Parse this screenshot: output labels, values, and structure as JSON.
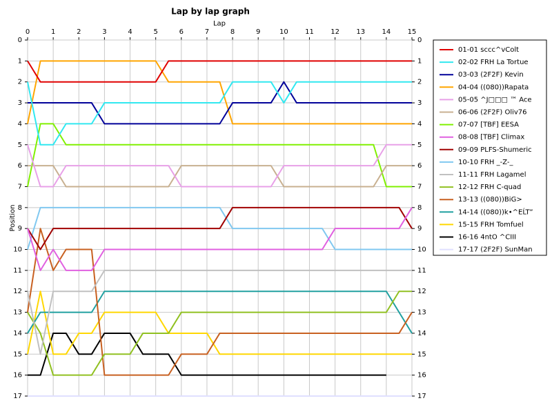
{
  "chart_data": {
    "type": "line",
    "title": "Lap by lap graph",
    "x_label": "Lap",
    "y_label": "Position",
    "x": [
      0,
      0.5,
      1,
      1.5,
      2,
      2.5,
      3,
      3.5,
      4,
      4.5,
      5,
      5.5,
      6,
      6.5,
      7,
      7.5,
      8,
      8.5,
      9,
      9.5,
      10,
      10.5,
      11,
      11.5,
      12,
      12.5,
      13,
      13.5,
      14,
      14.5,
      15
    ],
    "xlim": [
      0,
      15
    ],
    "xticks": [
      0,
      1,
      2,
      3,
      4,
      5,
      6,
      7,
      8,
      9,
      10,
      11,
      12,
      13,
      14,
      15
    ],
    "ylim": [
      17,
      0
    ],
    "yticks": [
      0,
      1,
      2,
      3,
      4,
      5,
      6,
      7,
      8,
      9,
      10,
      11,
      12,
      13,
      14,
      15,
      16,
      17
    ],
    "grid": true,
    "legend": "right",
    "series": [
      {
        "name": "01-01 sccc^vColt",
        "color": "#e00000",
        "values": [
          1,
          2,
          2,
          2,
          2,
          2,
          2,
          2,
          2,
          2,
          2,
          1,
          1,
          1,
          1,
          1,
          1,
          1,
          1,
          1,
          1,
          1,
          1,
          1,
          1,
          1,
          1,
          1,
          1,
          1,
          1
        ]
      },
      {
        "name": "02-02 FRH La Tortue",
        "color": "#30e8f0",
        "values": [
          2,
          5,
          5,
          4,
          4,
          4,
          3,
          3,
          3,
          3,
          3,
          3,
          3,
          3,
          3,
          3,
          2,
          2,
          2,
          2,
          3,
          2,
          2,
          2,
          2,
          2,
          2,
          2,
          2,
          2,
          2
        ]
      },
      {
        "name": "03-03 (2F2F) Kevin",
        "color": "#000099",
        "values": [
          3,
          3,
          3,
          3,
          3,
          3,
          4,
          4,
          4,
          4,
          4,
          4,
          4,
          4,
          4,
          4,
          3,
          3,
          3,
          3,
          2,
          3,
          3,
          3,
          3,
          3,
          3,
          3,
          3,
          3,
          3
        ]
      },
      {
        "name": "04-04 ((080))Rapata",
        "color": "#ffa500",
        "values": [
          4,
          1,
          1,
          1,
          1,
          1,
          1,
          1,
          1,
          1,
          1,
          2,
          2,
          2,
          2,
          2,
          4,
          4,
          4,
          4,
          4,
          4,
          4,
          4,
          4,
          4,
          4,
          4,
          4,
          4,
          4
        ]
      },
      {
        "name": "05-05 ^J□□□ ™ Ace",
        "color": "#e8a0e8",
        "values": [
          5,
          7,
          7,
          6,
          6,
          6,
          6,
          6,
          6,
          6,
          6,
          6,
          7,
          7,
          7,
          7,
          7,
          7,
          7,
          7,
          6,
          6,
          6,
          6,
          6,
          6,
          6,
          6,
          5,
          5,
          5
        ]
      },
      {
        "name": "06-06 (2F2F) Oliv76",
        "color": "#c8b090",
        "values": [
          6,
          6,
          6,
          7,
          7,
          7,
          7,
          7,
          7,
          7,
          7,
          7,
          6,
          6,
          6,
          6,
          6,
          6,
          6,
          6,
          7,
          7,
          7,
          7,
          7,
          7,
          7,
          7,
          6,
          6,
          6
        ]
      },
      {
        "name": "07-07 [TBF] EESA",
        "color": "#80f000",
        "values": [
          7,
          4,
          4,
          5,
          5,
          5,
          5,
          5,
          5,
          5,
          5,
          5,
          5,
          5,
          5,
          5,
          5,
          5,
          5,
          5,
          5,
          5,
          5,
          5,
          5,
          5,
          5,
          5,
          7,
          7,
          7
        ]
      },
      {
        "name": "08-08 [TBF] Climax",
        "color": "#e060e0",
        "values": [
          9,
          11,
          10,
          11,
          11,
          11,
          10,
          10,
          10,
          10,
          10,
          10,
          10,
          10,
          10,
          10,
          10,
          10,
          10,
          10,
          10,
          10,
          10,
          10,
          9,
          9,
          9,
          9,
          9,
          9,
          8
        ]
      },
      {
        "name": "09-09 PLFS-Shumeric",
        "color": "#a00000",
        "values": [
          9,
          10,
          9,
          9,
          9,
          9,
          9,
          9,
          9,
          9,
          9,
          9,
          9,
          9,
          9,
          9,
          8,
          8,
          8,
          8,
          8,
          8,
          8,
          8,
          8,
          8,
          8,
          8,
          8,
          8,
          9
        ]
      },
      {
        "name": "10-10 FRH _-Z-_",
        "color": "#80c8f0",
        "values": [
          10,
          8,
          8,
          8,
          8,
          8,
          8,
          8,
          8,
          8,
          8,
          8,
          8,
          8,
          8,
          8,
          9,
          9,
          9,
          9,
          9,
          9,
          9,
          9,
          10,
          10,
          10,
          10,
          10,
          10,
          10
        ]
      },
      {
        "name": "11-11 FRH Lagamel",
        "color": "#c0c0c0",
        "values": [
          12,
          15,
          12,
          12,
          12,
          12,
          11,
          11,
          11,
          11,
          11,
          11,
          11,
          11,
          11,
          11,
          11,
          11,
          11,
          11,
          11,
          11,
          11,
          11,
          11,
          11,
          11,
          11,
          11,
          11,
          11
        ]
      },
      {
        "name": "12-12 FRH C-quad",
        "color": "#90c020",
        "values": [
          13,
          14,
          16,
          16,
          16,
          16,
          15,
          15,
          15,
          14,
          14,
          14,
          13,
          13,
          13,
          13,
          13,
          13,
          13,
          13,
          13,
          13,
          13,
          13,
          13,
          13,
          13,
          13,
          13,
          12,
          12
        ]
      },
      {
        "name": "13-13 ((080))BiG>",
        "color": "#c86020",
        "values": [
          13,
          9,
          11,
          10,
          10,
          10,
          16,
          16,
          16,
          16,
          16,
          16,
          15,
          15,
          15,
          14,
          14,
          14,
          14,
          14,
          14,
          14,
          14,
          14,
          14,
          14,
          14,
          14,
          14,
          14,
          13
        ]
      },
      {
        "name": "14-14 ((080))k•^EĹT”",
        "color": "#20a0a0",
        "values": [
          14,
          13,
          13,
          13,
          13,
          13,
          12,
          12,
          12,
          12,
          12,
          12,
          12,
          12,
          12,
          12,
          12,
          12,
          12,
          12,
          12,
          12,
          12,
          12,
          12,
          12,
          12,
          12,
          12,
          13,
          14
        ]
      },
      {
        "name": "15-15 FRH Tomfuel",
        "color": "#ffd700",
        "values": [
          15,
          12,
          15,
          15,
          14,
          14,
          13,
          13,
          13,
          13,
          13,
          14,
          14,
          14,
          14,
          15,
          15,
          15,
          15,
          15,
          15,
          15,
          15,
          15,
          15,
          15,
          15,
          15,
          15,
          15,
          15
        ]
      },
      {
        "name": "16-16 4ntO ^CIII",
        "color": "#000000",
        "values": [
          16,
          16,
          14,
          14,
          15,
          15,
          14,
          14,
          14,
          15,
          15,
          15,
          16,
          16,
          16,
          16,
          16,
          16,
          16,
          16,
          16,
          16,
          16,
          16,
          16,
          16,
          16,
          16,
          16,
          null,
          null
        ]
      },
      {
        "name": "17-17 (2F2F) SunMan",
        "color": "#e0e0ff",
        "values": [
          17,
          17,
          17,
          17,
          17,
          17,
          17,
          17,
          17,
          17,
          17,
          17,
          17,
          17,
          17,
          17,
          17,
          17,
          17,
          17,
          17,
          17,
          17,
          17,
          17,
          17,
          17,
          17,
          17,
          17,
          17
        ]
      }
    ]
  }
}
